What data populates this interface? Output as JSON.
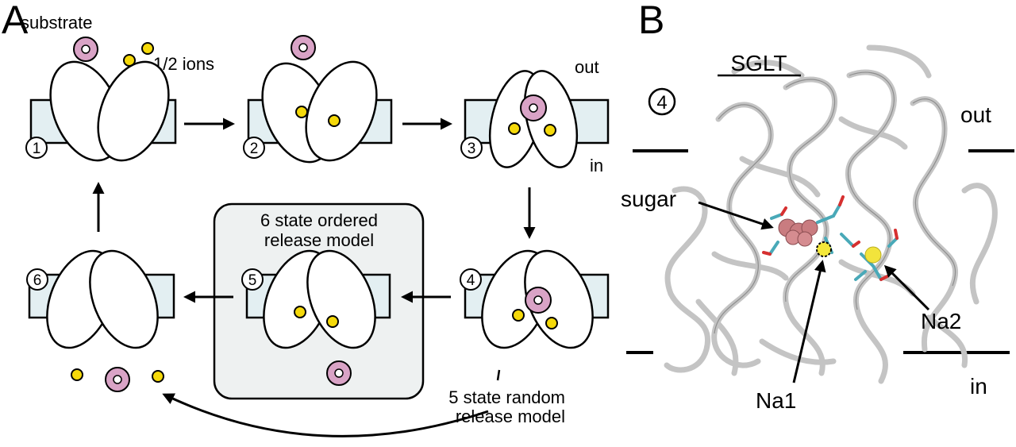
{
  "panel_a": {
    "letter": "A",
    "substrate_label": "substrate",
    "ions_label": "1/2 ions",
    "out_label": "out",
    "in_label": "in",
    "state_numbers": [
      "1",
      "2",
      "3",
      "4",
      "5",
      "6"
    ],
    "ordered_model_line1": "6 state ordered",
    "ordered_model_line2": "release model",
    "random_model_line1": "5 state random",
    "random_model_line2": "release model"
  },
  "panel_b": {
    "letter": "B",
    "title": "SGLT",
    "state_marker": "4",
    "out_label": "out",
    "in_label": "in",
    "sugar_label": "sugar",
    "na1_label": "Na1",
    "na2_label": "Na2"
  },
  "colors": {
    "membrane": "#e3eff2",
    "ion": "#f5d90a",
    "substrate": "#d9a3c6",
    "ordered_box": "#eef1f1",
    "protein_ribbon": "#c4c4c4"
  }
}
